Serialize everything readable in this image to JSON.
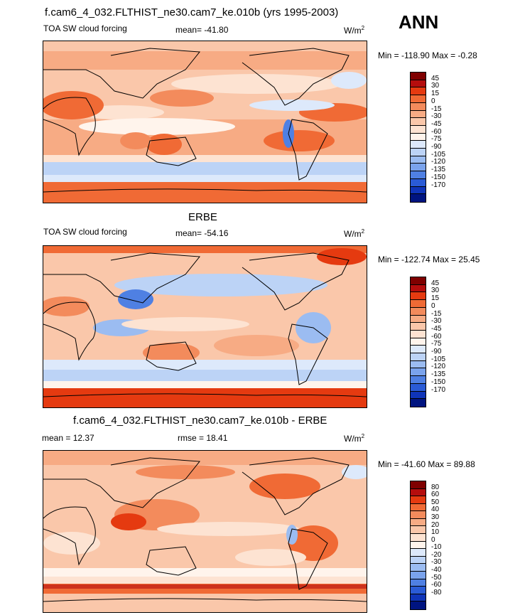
{
  "page": {
    "top_title": "f.cam6_4_032.FLTHIST_ne30.cam7_ke.010b (yrs 1995-2003)",
    "season": "ANN"
  },
  "panels": [
    {
      "title": "",
      "left": "TOA SW cloud forcing",
      "center": "mean= -41.80",
      "units_base": "W/m",
      "units_exp": "2",
      "minmax": "Min = -118.90 Max =  -0.28",
      "colorbar_labels": [
        "45",
        "30",
        "15",
        "0",
        "-15",
        "-30",
        "-45",
        "-60",
        "-75",
        "-90",
        "-105",
        "-120",
        "-135",
        "-150",
        "-170"
      ]
    },
    {
      "title": "ERBE",
      "left": "TOA SW cloud forcing",
      "center": "mean= -54.16",
      "units_base": "W/m",
      "units_exp": "2",
      "minmax": "Min = -122.74 Max =  25.45",
      "colorbar_labels": [
        "45",
        "30",
        "15",
        "0",
        "-15",
        "-30",
        "-45",
        "-60",
        "-75",
        "-90",
        "-105",
        "-120",
        "-135",
        "-150",
        "-170"
      ]
    },
    {
      "title": "f.cam6_4_032.FLTHIST_ne30.cam7_ke.010b - ERBE",
      "left": "mean =  12.37",
      "center": "rmse =  18.41",
      "units_base": "W/m",
      "units_exp": "2",
      "minmax": "Min = -41.60 Max =  89.88",
      "colorbar_labels": [
        "80",
        "60",
        "50",
        "40",
        "30",
        "20",
        "10",
        "0",
        "-10",
        "-20",
        "-30",
        "-40",
        "-50",
        "-60",
        "-80"
      ]
    }
  ],
  "colors": {
    "scale": [
      "#7f0000",
      "#b50d0d",
      "#e53a10",
      "#f06a35",
      "#f38b5c",
      "#f7ab84",
      "#fac7aa",
      "#fde3d2",
      "#fff4ec",
      "#dde9fb",
      "#bcd3f6",
      "#9bbcf1",
      "#7aa3ec",
      "#4f80e3",
      "#2a5bd6",
      "#0f34b8",
      "#001480"
    ],
    "land_outline": "#000000"
  }
}
